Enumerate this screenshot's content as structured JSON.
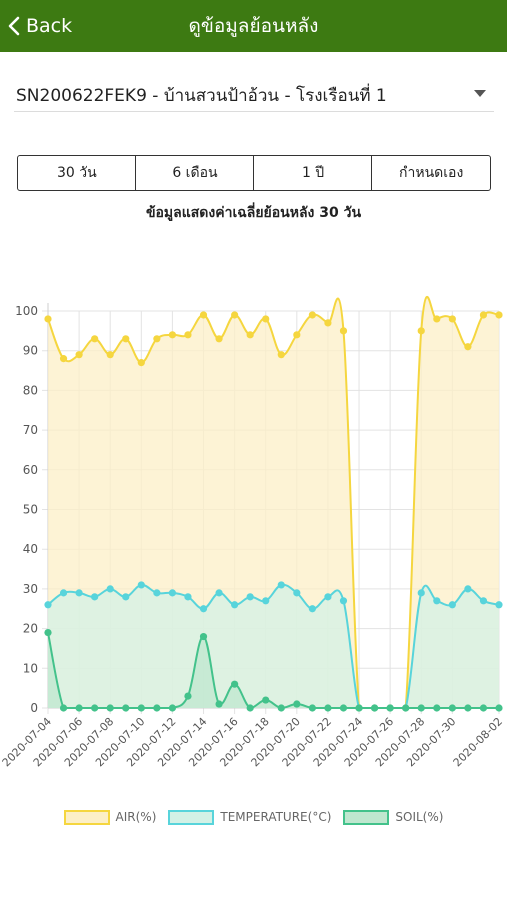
{
  "header": {
    "back_label": "Back",
    "title": "ดูข้อมูลย้อนหลัง"
  },
  "device_selector": {
    "value": "SN200622FEK9 - บ้านสวนป้าอ้วน - โรงเรือนที่ 1"
  },
  "range_buttons": [
    {
      "label": "30 วัน"
    },
    {
      "label": "6 เดือน"
    },
    {
      "label": "1 ปี"
    },
    {
      "label": "กำหนดเอง"
    }
  ],
  "caption": "ข้อมูลแสดงค่าเฉลี่ยย้อนหลัง 30 วัน",
  "colors": {
    "appbar": "#3d7a12",
    "air": "#f5d63f",
    "air_fill": "#fcefc7",
    "temperature": "#58d4db",
    "temperature_fill": "#d3f1e6",
    "soil": "#43c28b",
    "soil_fill": "#bfe7cf"
  },
  "legend": [
    {
      "label": "AIR(%)"
    },
    {
      "label": "TEMPERATURE(°C)"
    },
    {
      "label": "SOIL(%)"
    }
  ],
  "chart_data": {
    "type": "area",
    "x": [
      "2020-07-04",
      "2020-07-05",
      "2020-07-06",
      "2020-07-07",
      "2020-07-08",
      "2020-07-09",
      "2020-07-10",
      "2020-07-11",
      "2020-07-12",
      "2020-07-13",
      "2020-07-14",
      "2020-07-15",
      "2020-07-16",
      "2020-07-17",
      "2020-07-18",
      "2020-07-19",
      "2020-07-20",
      "2020-07-21",
      "2020-07-22",
      "2020-07-23",
      "2020-07-24",
      "2020-07-25",
      "2020-07-26",
      "2020-07-27",
      "2020-07-28",
      "2020-07-29",
      "2020-07-30",
      "2020-07-31",
      "2020-08-01",
      "2020-08-02"
    ],
    "x_ticks": [
      "2020-07-04",
      "2020-07-06",
      "2020-07-08",
      "2020-07-10",
      "2020-07-12",
      "2020-07-14",
      "2020-07-16",
      "2020-07-18",
      "2020-07-20",
      "2020-07-22",
      "2020-07-24",
      "2020-07-26",
      "2020-07-28",
      "2020-07-30",
      "2020-08-02"
    ],
    "ylim": [
      0,
      100
    ],
    "y_ticks": [
      0,
      10,
      20,
      30,
      40,
      50,
      60,
      70,
      80,
      90,
      100
    ],
    "grid": true,
    "legend_position": "bottom",
    "series": [
      {
        "name": "AIR(%)",
        "values": [
          98,
          88,
          89,
          93,
          89,
          93,
          87,
          93,
          94,
          94,
          99,
          93,
          99,
          94,
          98,
          89,
          94,
          99,
          97,
          95,
          0,
          0,
          0,
          0,
          95,
          98,
          98,
          91,
          99,
          99
        ]
      },
      {
        "name": "TEMPERATURE(°C)",
        "values": [
          26,
          29,
          29,
          28,
          30,
          28,
          31,
          29,
          29,
          28,
          25,
          29,
          26,
          28,
          27,
          31,
          29,
          25,
          28,
          27,
          0,
          0,
          0,
          0,
          29,
          27,
          26,
          30,
          27,
          26
        ]
      },
      {
        "name": "SOIL(%)",
        "values": [
          19,
          0,
          0,
          0,
          0,
          0,
          0,
          0,
          0,
          3,
          18,
          1,
          6,
          0,
          2,
          0,
          1,
          0,
          0,
          0,
          0,
          0,
          0,
          0,
          0,
          0,
          0,
          0,
          0,
          0
        ]
      }
    ]
  }
}
